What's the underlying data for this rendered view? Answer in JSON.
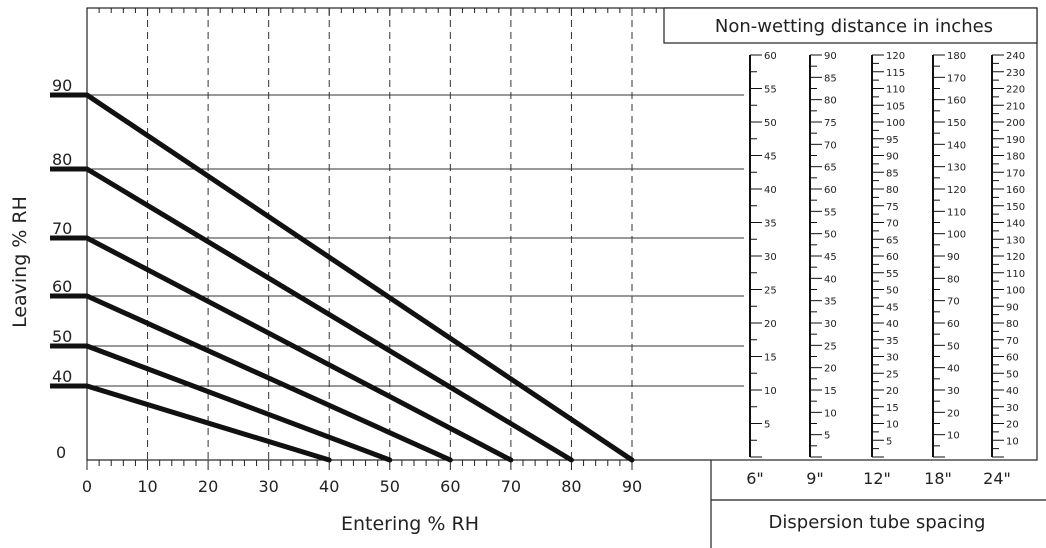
{
  "chart_data": {
    "type": "line",
    "xlabel": "Entering % RH",
    "ylabel": "Leaving % RH",
    "xlim": [
      0,
      90
    ],
    "x_ticks": [
      "0",
      "10",
      "20",
      "30",
      "40",
      "50",
      "60",
      "70",
      "80",
      "90"
    ],
    "y_ticks": [
      "0",
      "40",
      "50",
      "60",
      "70",
      "80",
      "90"
    ],
    "grid": true,
    "series": [
      {
        "values": [
          [
            0,
            40
          ],
          [
            40,
            0
          ]
        ]
      },
      {
        "values": [
          [
            0,
            50
          ],
          [
            50,
            0
          ]
        ]
      },
      {
        "values": [
          [
            0,
            60
          ],
          [
            60,
            0
          ]
        ]
      },
      {
        "values": [
          [
            0,
            70
          ],
          [
            70,
            0
          ]
        ]
      },
      {
        "values": [
          [
            0,
            80
          ],
          [
            80,
            0
          ]
        ]
      },
      {
        "values": [
          [
            0,
            90
          ],
          [
            90,
            0
          ]
        ]
      }
    ],
    "right_panel": {
      "title": "Non-wetting distance in inches",
      "footer": "Dispersion tube spacing",
      "scales": [
        {
          "spacing": "6\"",
          "max": 60,
          "labels": [
            "60",
            "55",
            "50",
            "45",
            "40",
            "35",
            "30",
            "25",
            "20",
            "15",
            "10",
            "5"
          ]
        },
        {
          "spacing": "9\"",
          "max": 90,
          "labels": [
            "90",
            "85",
            "80",
            "75",
            "70",
            "65",
            "60",
            "55",
            "50",
            "45",
            "40",
            "35",
            "30",
            "25",
            "20",
            "15",
            "10",
            "5"
          ]
        },
        {
          "spacing": "12\"",
          "max": 120,
          "labels": [
            "120",
            "115",
            "110",
            "105",
            "100",
            "95",
            "90",
            "85",
            "80",
            "75",
            "70",
            "65",
            "60",
            "55",
            "50",
            "45",
            "40",
            "35",
            "30",
            "25",
            "20",
            "15",
            "10",
            "5"
          ]
        },
        {
          "spacing": "18\"",
          "max": 180,
          "labels": [
            "180",
            "170",
            "160",
            "150",
            "140",
            "130",
            "120",
            "110",
            "100",
            "90",
            "80",
            "70",
            "60",
            "50",
            "40",
            "30",
            "20",
            "10"
          ]
        },
        {
          "spacing": "24\"",
          "max": 240,
          "labels": [
            "240",
            "230",
            "220",
            "210",
            "200",
            "190",
            "180",
            "170",
            "160",
            "150",
            "140",
            "130",
            "120",
            "110",
            "100",
            "90",
            "80",
            "70",
            "60",
            "50",
            "40",
            "30",
            "20",
            "10"
          ]
        }
      ]
    }
  }
}
